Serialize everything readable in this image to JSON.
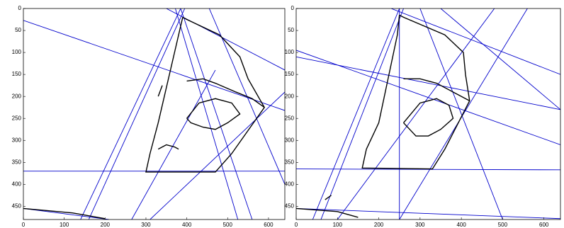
{
  "chart_data": [
    {
      "type": "line",
      "xlim": [
        0,
        640
      ],
      "ylim": [
        480,
        0
      ],
      "xticks": [
        0,
        100,
        200,
        300,
        400,
        500,
        600
      ],
      "yticks": [
        0,
        50,
        100,
        150,
        200,
        250,
        300,
        350,
        400,
        450
      ],
      "series": [
        {
          "color": "#0000cc",
          "x": [
            0,
            640
          ],
          "values": [
            27,
            232
          ]
        },
        {
          "color": "#0000cc",
          "x": [
            0,
            640
          ],
          "values": [
            370,
            370
          ]
        },
        {
          "color": "#0000cc",
          "x": [
            350,
            640
          ],
          "values": [
            0,
            140
          ]
        },
        {
          "color": "#0000cc",
          "x": [
            385,
            560
          ],
          "values": [
            0,
            480
          ]
        },
        {
          "color": "#0000cc",
          "x": [
            372,
            525
          ],
          "values": [
            0,
            480
          ]
        },
        {
          "color": "#0000cc",
          "x": [
            455,
            640
          ],
          "values": [
            0,
            400
          ]
        },
        {
          "color": "#0000cc",
          "x": [
            140,
            385
          ],
          "values": [
            480,
            0
          ]
        },
        {
          "color": "#0000cc",
          "x": [
            160,
            395
          ],
          "values": [
            480,
            0
          ]
        },
        {
          "color": "#0000cc",
          "x": [
            310,
            640
          ],
          "values": [
            480,
            190
          ]
        },
        {
          "color": "#0000cc",
          "x": [
            265,
            470
          ],
          "values": [
            480,
            140
          ]
        },
        {
          "color": "#0000cc",
          "x": [
            0,
            210
          ],
          "values": [
            455,
            480
          ]
        },
        {
          "color": "#000000",
          "x": [
            390,
            380,
            330,
            310,
            300,
            470,
            510,
            590,
            550,
            530,
            480,
            400,
            390
          ],
          "values": [
            20,
            60,
            260,
            330,
            372,
            372,
            330,
            225,
            160,
            110,
            60,
            25,
            20
          ]
        },
        {
          "color": "#000000",
          "x": [
            400,
            440,
            470,
            520,
            560,
            590
          ],
          "values": [
            165,
            160,
            170,
            190,
            205,
            225
          ]
        },
        {
          "color": "#000000",
          "x": [
            400,
            430,
            470,
            510,
            530,
            500,
            470,
            440,
            410,
            400
          ],
          "values": [
            250,
            215,
            205,
            215,
            240,
            260,
            275,
            270,
            260,
            250
          ]
        },
        {
          "color": "#000000",
          "x": [
            330,
            350,
            370,
            380
          ],
          "values": [
            320,
            310,
            315,
            320
          ]
        },
        {
          "color": "#000000",
          "x": [
            330,
            340
          ],
          "values": [
            200,
            175
          ]
        },
        {
          "color": "#000000",
          "x": [
            0,
            120,
            200
          ],
          "values": [
            455,
            465,
            478
          ]
        }
      ]
    },
    {
      "type": "line",
      "xlim": [
        0,
        640
      ],
      "ylim": [
        480,
        0
      ],
      "xticks": [
        0,
        100,
        200,
        300,
        400,
        500,
        600
      ],
      "yticks": [
        0,
        50,
        100,
        150,
        200,
        250,
        300,
        350,
        400,
        450
      ],
      "series": [
        {
          "color": "#0000cc",
          "x": [
            0,
            640
          ],
          "values": [
            95,
            310
          ]
        },
        {
          "color": "#0000cc",
          "x": [
            0,
            640
          ],
          "values": [
            110,
            230
          ]
        },
        {
          "color": "#0000cc",
          "x": [
            0,
            640
          ],
          "values": [
            365,
            367
          ]
        },
        {
          "color": "#0000cc",
          "x": [
            250,
            250
          ],
          "values": [
            0,
            480
          ]
        },
        {
          "color": "#0000cc",
          "x": [
            230,
            640
          ],
          "values": [
            0,
            150
          ]
        },
        {
          "color": "#0000cc",
          "x": [
            300,
            500
          ],
          "values": [
            0,
            480
          ]
        },
        {
          "color": "#0000cc",
          "x": [
            350,
            640
          ],
          "values": [
            0,
            230
          ]
        },
        {
          "color": "#0000cc",
          "x": [
            40,
            250
          ],
          "values": [
            480,
            0
          ]
        },
        {
          "color": "#0000cc",
          "x": [
            60,
            260
          ],
          "values": [
            480,
            0
          ]
        },
        {
          "color": "#0000cc",
          "x": [
            100,
            480
          ],
          "values": [
            480,
            0
          ]
        },
        {
          "color": "#0000cc",
          "x": [
            250,
            560
          ],
          "values": [
            480,
            0
          ]
        },
        {
          "color": "#0000cc",
          "x": [
            0,
            640
          ],
          "values": [
            455,
            478
          ]
        },
        {
          "color": "#000000",
          "x": [
            250,
            245,
            200,
            170,
            160,
            330,
            360,
            420,
            410,
            405,
            360,
            260,
            250
          ],
          "values": [
            15,
            60,
            260,
            320,
            363,
            365,
            320,
            210,
            150,
            100,
            60,
            20,
            15
          ]
        },
        {
          "color": "#000000",
          "x": [
            260,
            300,
            340,
            380,
            420
          ],
          "values": [
            160,
            160,
            170,
            190,
            210
          ]
        },
        {
          "color": "#000000",
          "x": [
            260,
            300,
            340,
            370,
            380,
            350,
            320,
            290,
            260
          ],
          "values": [
            260,
            215,
            205,
            220,
            250,
            275,
            290,
            290,
            260
          ]
        },
        {
          "color": "#000000",
          "x": [
            0,
            100,
            150
          ],
          "values": [
            455,
            462,
            475
          ]
        },
        {
          "color": "#000000",
          "x": [
            70,
            85
          ],
          "values": [
            435,
            425
          ]
        }
      ]
    }
  ]
}
